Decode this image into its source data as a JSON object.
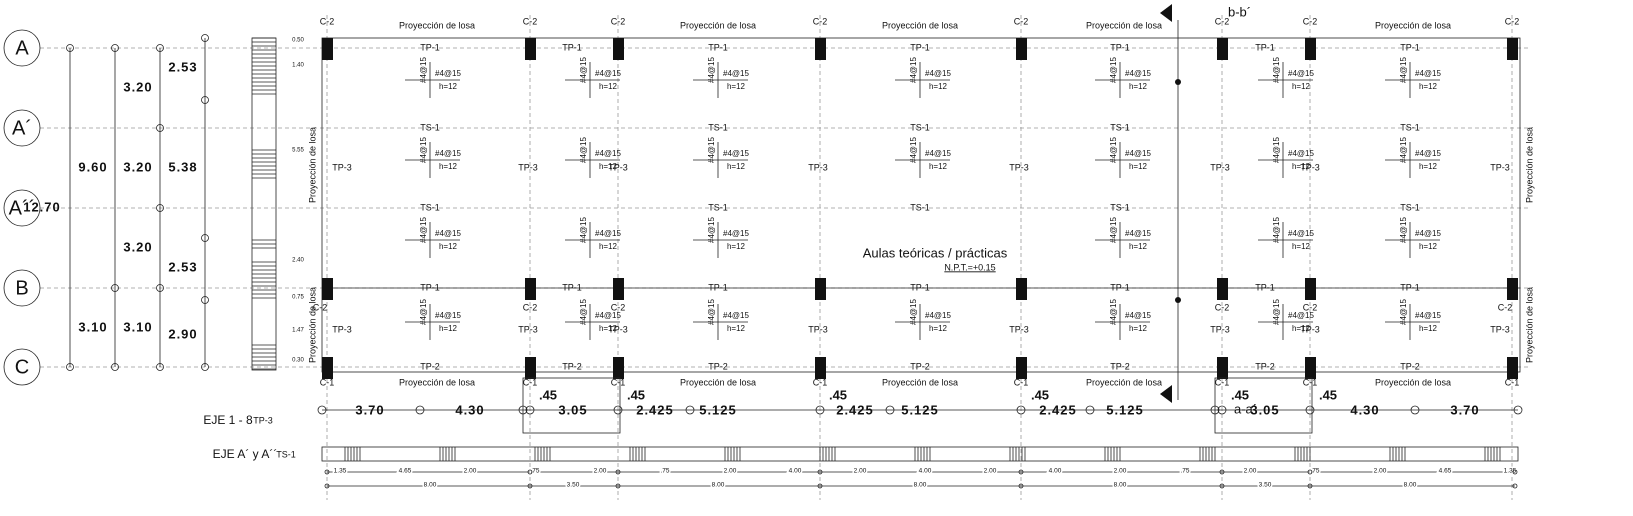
{
  "axes": {
    "rows": [
      "A",
      "A´",
      "A´´",
      "B",
      "C"
    ]
  },
  "dimensions_left": {
    "overall": "12.70",
    "second": [
      "9.60",
      "3.10"
    ],
    "third": [
      "3.20",
      "3.20",
      "3.20",
      "3.10"
    ],
    "fourth": [
      "2.53",
      "5.38",
      "2.53",
      "2.90"
    ]
  },
  "stirrup_dims": [
    "0.50",
    "1.40",
    "5.55",
    "2.40",
    "0.75",
    "1.47",
    "0.30"
  ],
  "column_labels": {
    "top": "C-2",
    "bottom": "C-1"
  },
  "slab_projection": "Proyección de losa",
  "beams": {
    "top": "TP-1",
    "secondary": "TS-1",
    "transverse": "TP-3",
    "bottom": "TP-2"
  },
  "slab": {
    "rebar": "#4@15",
    "thickness": "h=12"
  },
  "room": {
    "name": "Aulas teóricas / prácticas",
    "level": "N.P.T.=+0.15"
  },
  "sections": {
    "b": "b-b´",
    "a": "a-a´"
  },
  "bottom_dimensions": [
    "3.70",
    "4.30",
    "3.05",
    "2.425",
    "5.125",
    "2.425",
    "5.125",
    "2.425",
    "5.125",
    "3.05",
    "4.30",
    "3.70"
  ],
  "offset": ".45",
  "details": [
    {
      "title": "EJE 1 - 8",
      "beam": "TP-3"
    },
    {
      "title": "EJE A´ y A´´",
      "beam": "TS-1"
    }
  ],
  "detail_dims": {
    "row1": [
      "1.35",
      "4.65",
      "2.00",
      ".75",
      "2.00",
      ".75",
      "2.00",
      "4.00",
      "2.00",
      "4.00",
      "2.00",
      "4.00",
      "2.00",
      ".75",
      "2.00",
      ".75",
      "2.00",
      "4.65",
      "1.35"
    ],
    "row2": [
      "8.00",
      "3.50",
      "8.00",
      "8.00",
      "8.00",
      "3.50",
      "8.00"
    ]
  }
}
